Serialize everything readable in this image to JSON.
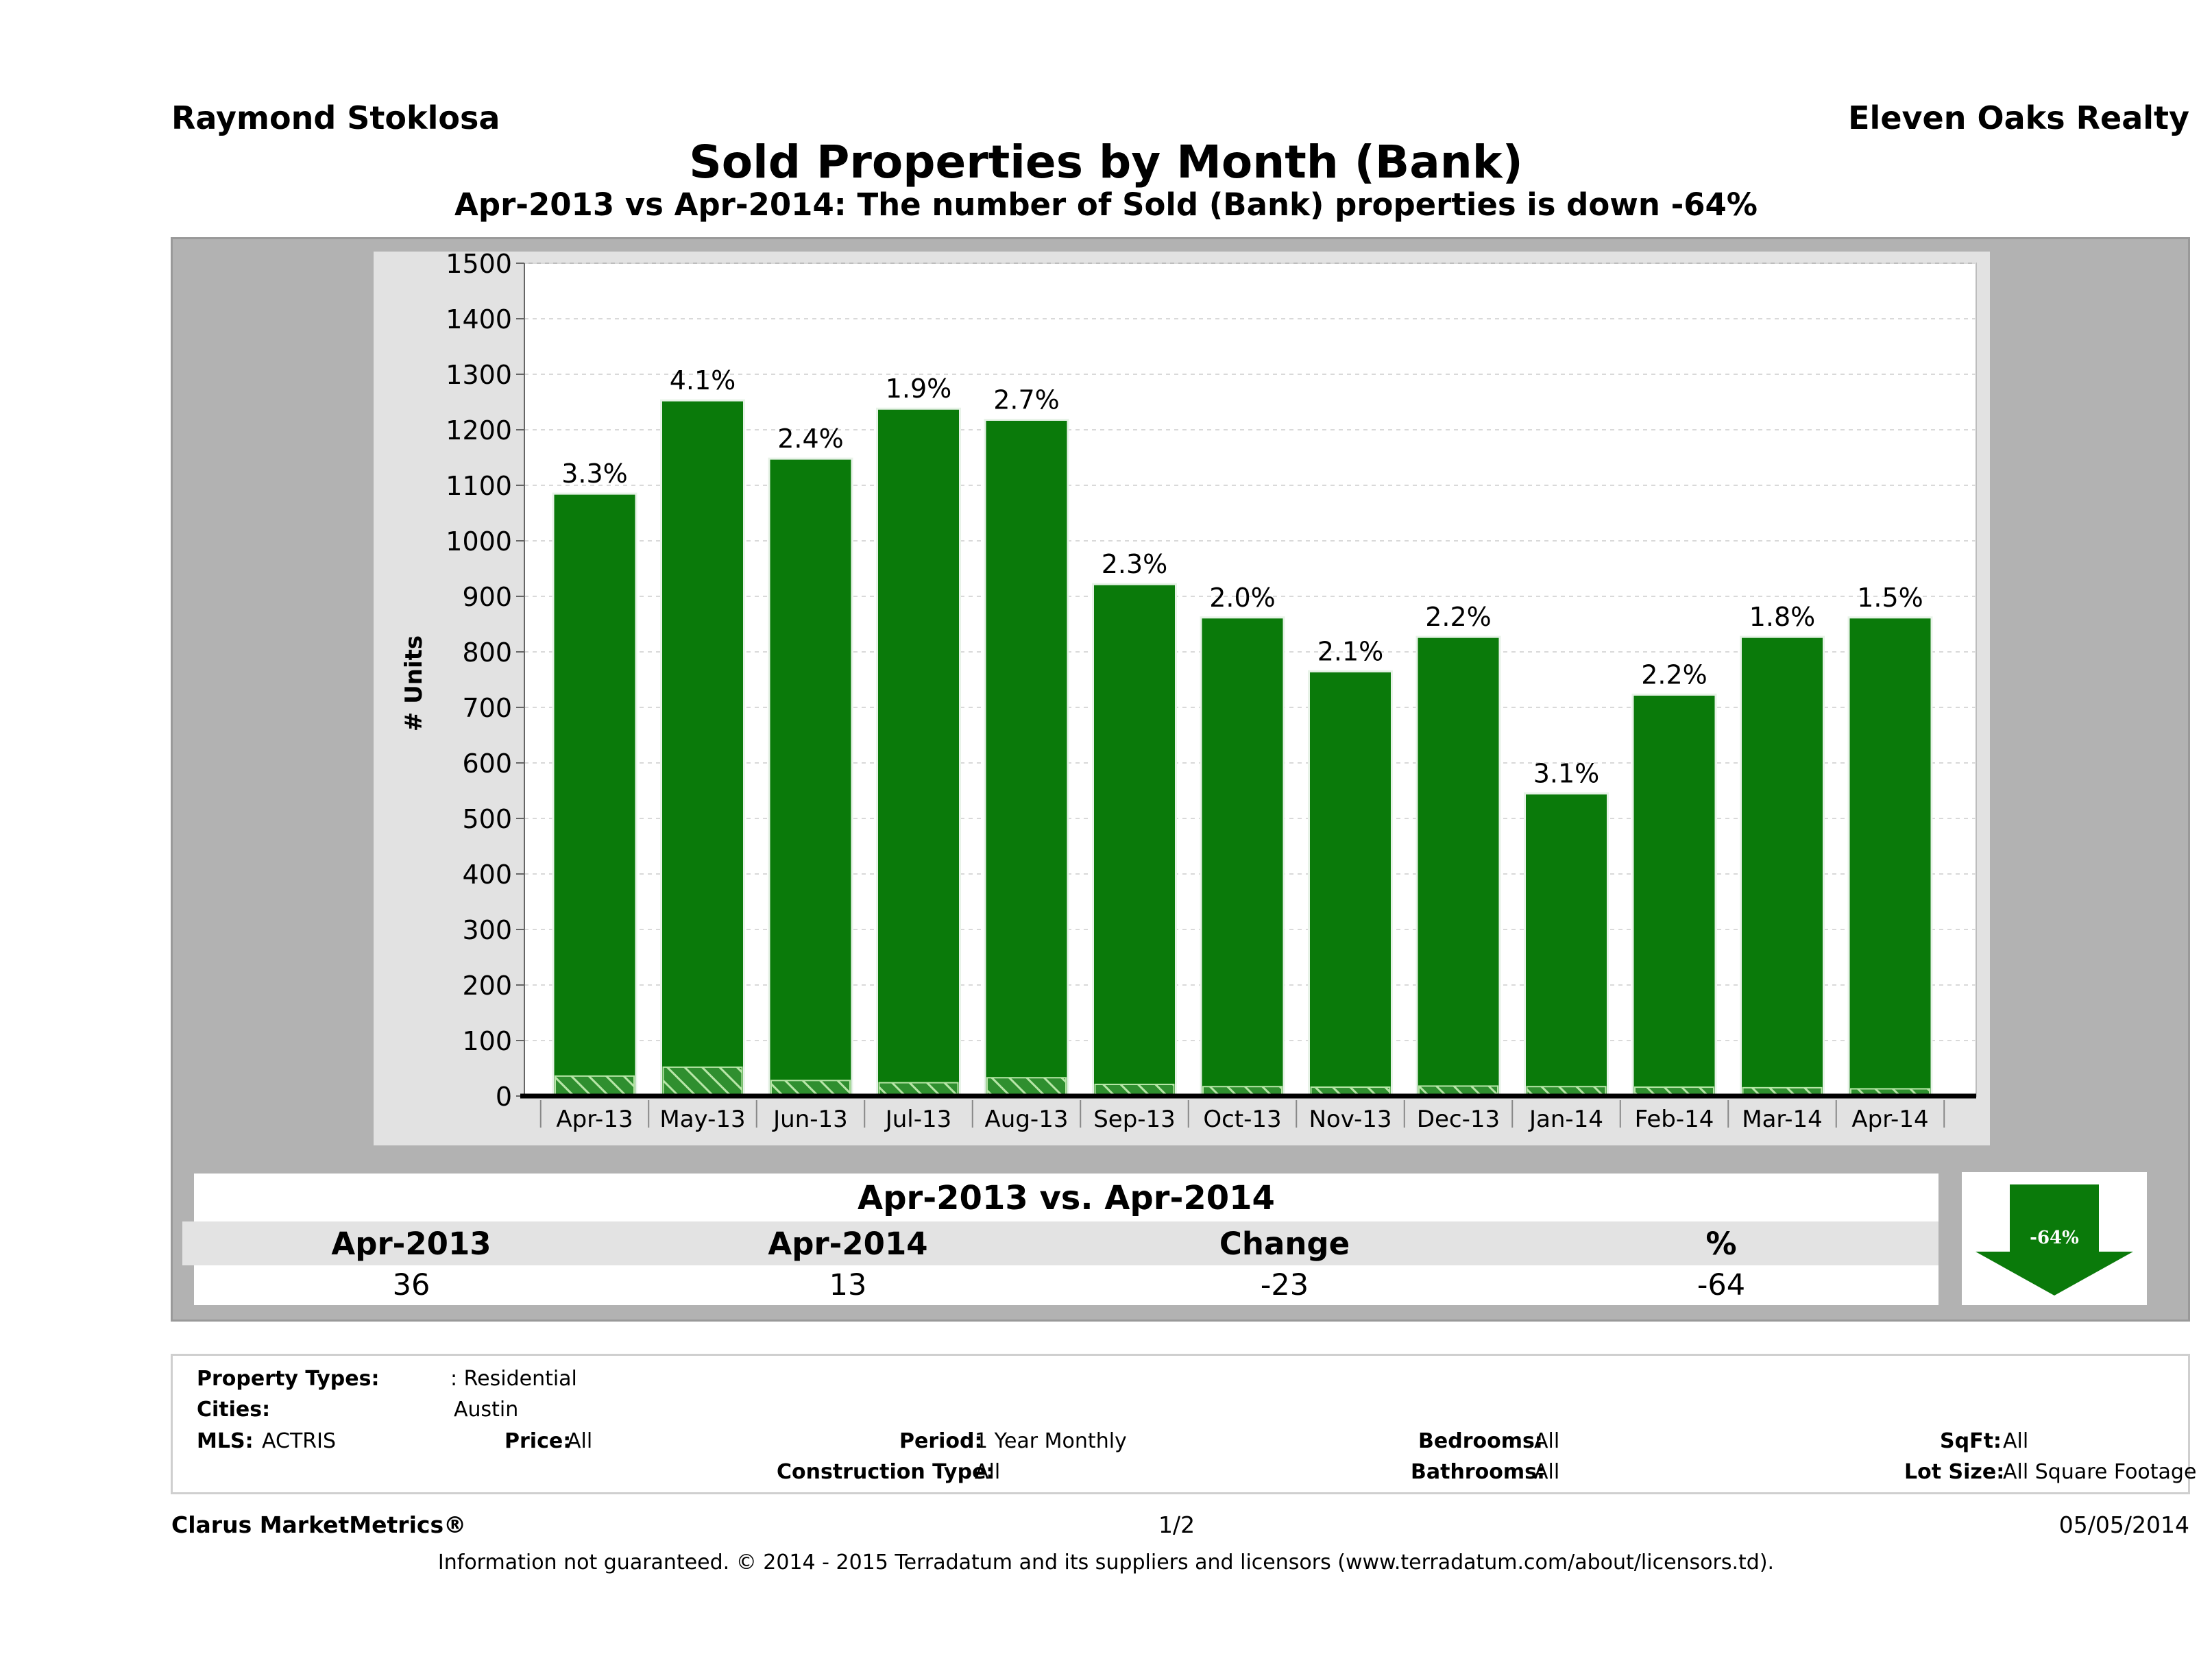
{
  "header": {
    "agent": "Raymond Stoklosa",
    "company": "Eleven Oaks Realty",
    "title": "Sold Properties by Month (Bank)",
    "subtitle": "Apr-2013 vs Apr-2014: The number of Sold (Bank)  properties is down -64%"
  },
  "chart_data": {
    "type": "bar",
    "ylabel": "# Units",
    "xlabel": "",
    "ylim": [
      0,
      1500
    ],
    "yticks": [
      0,
      100,
      200,
      300,
      400,
      500,
      600,
      700,
      800,
      900,
      1000,
      1100,
      1200,
      1300,
      1400,
      1500
    ],
    "grid": true,
    "categories": [
      "Apr-13",
      "May-13",
      "Jun-13",
      "Jul-13",
      "Aug-13",
      "Sep-13",
      "Oct-13",
      "Nov-13",
      "Dec-13",
      "Jan-14",
      "Feb-14",
      "Mar-14",
      "Apr-14"
    ],
    "series": [
      {
        "values": [
          1085,
          1253,
          1148,
          1238,
          1218,
          922,
          862,
          765,
          827,
          545,
          723,
          827,
          862
        ],
        "color": "#0a7a0a"
      },
      {
        "values": [
          36,
          52,
          28,
          24,
          33,
          21,
          17,
          16,
          18,
          17,
          16,
          15,
          13
        ],
        "color": "#3fa33f",
        "pattern": "hatched"
      }
    ],
    "labels": [
      "3.3%",
      "4.1%",
      "2.4%",
      "1.9%",
      "2.7%",
      "2.3%",
      "2.0%",
      "2.1%",
      "2.2%",
      "3.1%",
      "2.2%",
      "1.8%",
      "1.5%"
    ]
  },
  "comparison": {
    "title": "Apr-2013 vs. Apr-2014",
    "headers": [
      "Apr-2013",
      "Apr-2014",
      "Change",
      "%"
    ],
    "values": [
      "36",
      "13",
      "-23",
      "-64"
    ],
    "arrow_label": "-64%",
    "arrow_color": "#0a7a0a"
  },
  "properties": {
    "property_types_label": "Property Types:",
    "property_types_value": ": Residential",
    "cities_label": "Cities:",
    "cities_value": "Austin",
    "mls_label": "MLS:",
    "mls_value": "ACTRIS",
    "price_label": "Price:",
    "price_value": "All",
    "period_label": "Period:",
    "period_value": "1 Year Monthly",
    "construction_label": "Construction Type:",
    "construction_value": "All",
    "bedrooms_label": "Bedrooms:",
    "bedrooms_value": "All",
    "bathrooms_label": "Bathrooms:",
    "bathrooms_value": "All",
    "sqft_label": "SqFt:",
    "sqft_value": "All",
    "lot_label": "Lot Size:",
    "lot_value": "All Square Footage"
  },
  "footer": {
    "brand": "Clarus MarketMetrics®",
    "page": "1/2",
    "date": "05/05/2014",
    "disclaimer": "Information not guaranteed. © 2014 - 2015 Terradatum and its suppliers and licensors (www.terradatum.com/about/licensors.td)."
  }
}
